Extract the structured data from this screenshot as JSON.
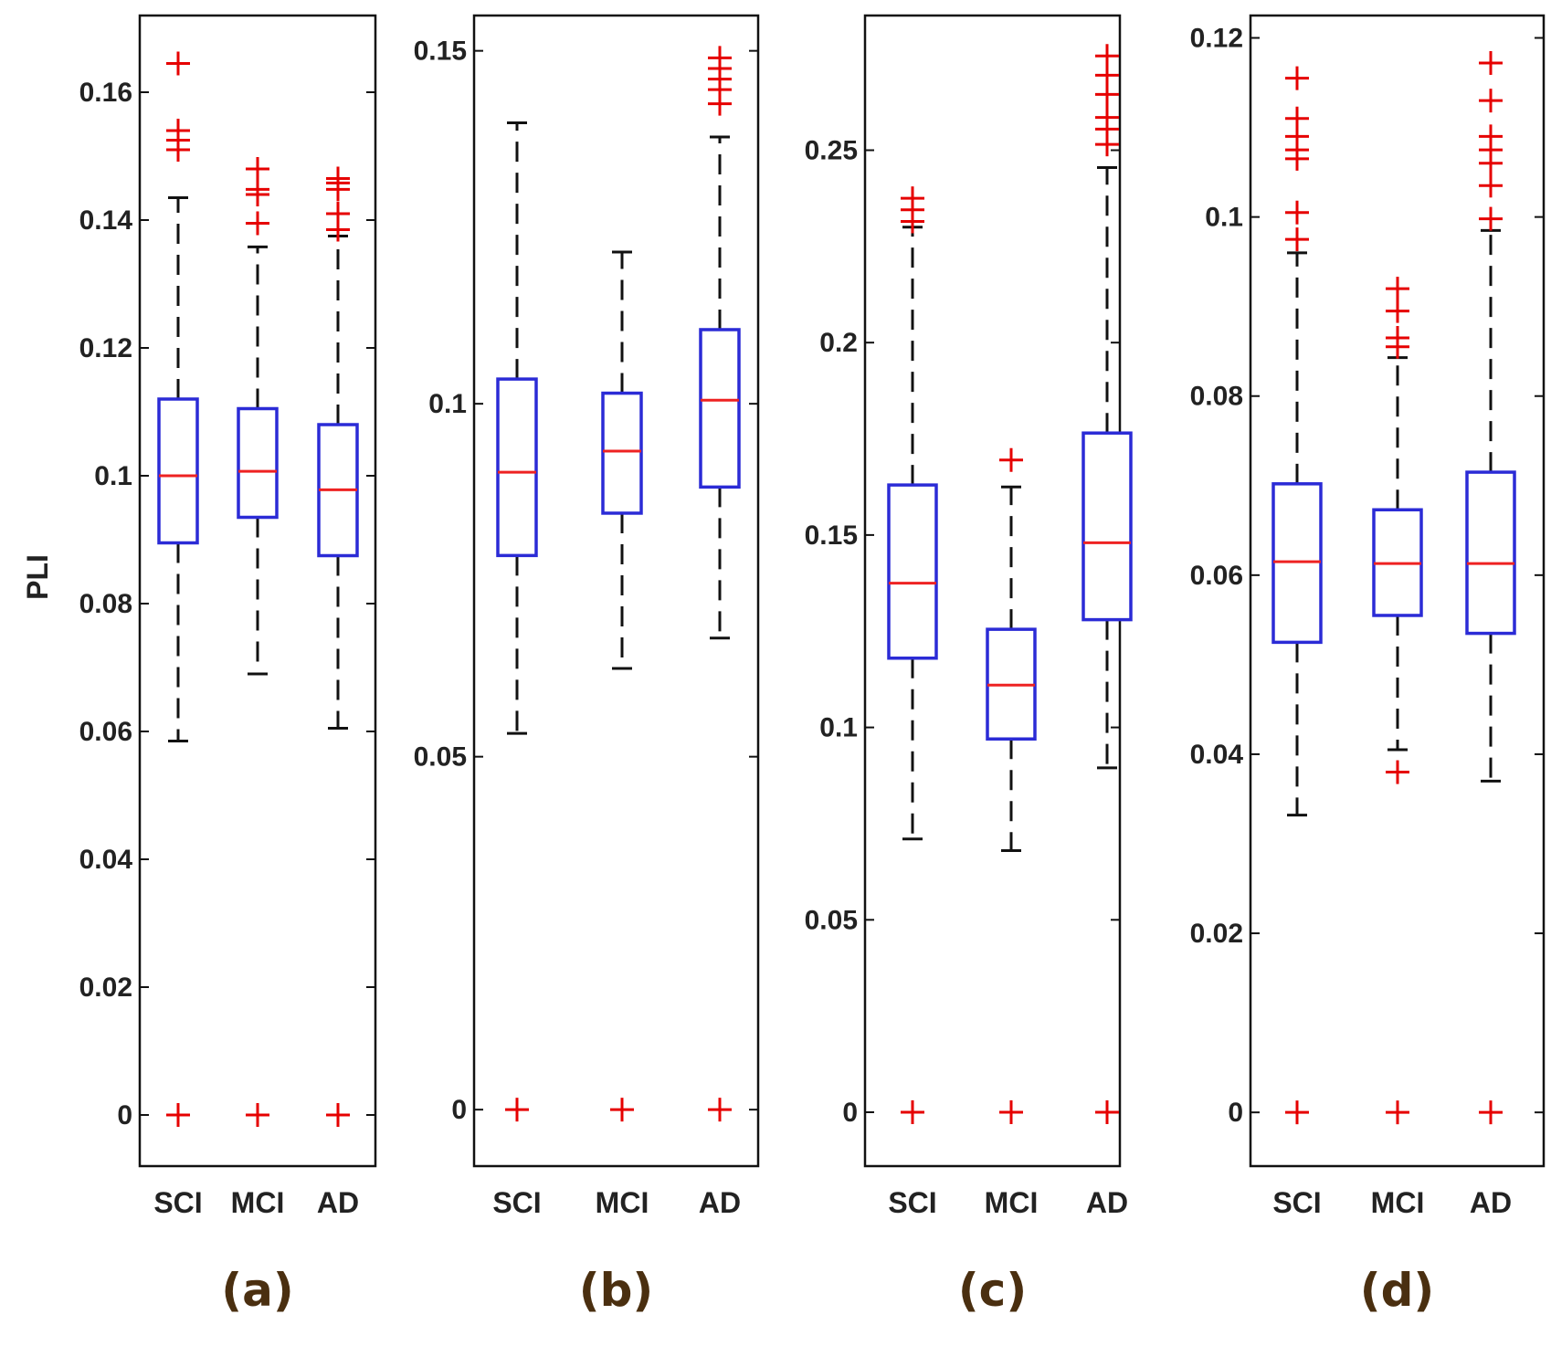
{
  "chart_data": [
    {
      "type": "box",
      "panel_label": "(a)",
      "ylabel": "PLI",
      "ylim": [
        -0.008,
        0.172
      ],
      "yticks": [
        0,
        0.02,
        0.04,
        0.06,
        0.08,
        0.1,
        0.12,
        0.14,
        0.16
      ],
      "ytick_labels": [
        "0",
        "0.02",
        "0.04",
        "0.06",
        "0.08",
        "0.1",
        "0.12",
        "0.14",
        "0.16"
      ],
      "categories": [
        "SCI",
        "MCI",
        "AD"
      ],
      "boxes": [
        {
          "name": "SCI",
          "whisker_low": 0.0585,
          "q1": 0.0895,
          "median": 0.1,
          "q3": 0.112,
          "whisker_high": 0.1435,
          "outliers": [
            0,
            0.151,
            0.1525,
            0.154,
            0.1645
          ]
        },
        {
          "name": "MCI",
          "whisker_low": 0.069,
          "q1": 0.0935,
          "median": 0.1007,
          "q3": 0.1105,
          "whisker_high": 0.1358,
          "outliers": [
            0,
            0.1395,
            0.144,
            0.1448,
            0.148
          ]
        },
        {
          "name": "AD",
          "whisker_low": 0.0605,
          "q1": 0.0875,
          "median": 0.0978,
          "q3": 0.108,
          "whisker_high": 0.1375,
          "outliers": [
            0,
            0.1385,
            0.141,
            0.1448,
            0.1458,
            0.1465
          ]
        }
      ]
    },
    {
      "type": "box",
      "panel_label": "(b)",
      "ylabel": "",
      "ylim": [
        -0.008,
        0.155
      ],
      "yticks": [
        0,
        0.05,
        0.1,
        0.15
      ],
      "ytick_labels": [
        "0",
        "0.05",
        "0.1",
        "0.15"
      ],
      "categories": [
        "SCI",
        "MCI",
        "AD"
      ],
      "boxes": [
        {
          "name": "SCI",
          "whisker_low": 0.0533,
          "q1": 0.0785,
          "median": 0.0903,
          "q3": 0.1035,
          "whisker_high": 0.1398,
          "outliers": [
            0
          ]
        },
        {
          "name": "MCI",
          "whisker_low": 0.0625,
          "q1": 0.0845,
          "median": 0.0933,
          "q3": 0.1015,
          "whisker_high": 0.1215,
          "outliers": [
            0
          ]
        },
        {
          "name": "AD",
          "whisker_low": 0.0668,
          "q1": 0.0882,
          "median": 0.1005,
          "q3": 0.1105,
          "whisker_high": 0.1378,
          "outliers": [
            0,
            0.1425,
            0.1445,
            0.146,
            0.1475,
            0.149
          ]
        }
      ]
    },
    {
      "type": "box",
      "panel_label": "(c)",
      "ylabel": "",
      "ylim": [
        -0.014,
        0.285
      ],
      "yticks": [
        0,
        0.05,
        0.1,
        0.15,
        0.2,
        0.25
      ],
      "ytick_labels": [
        "0",
        "0.05",
        "0.1",
        "0.15",
        "0.2",
        "0.25"
      ],
      "categories": [
        "SCI",
        "MCI",
        "AD"
      ],
      "boxes": [
        {
          "name": "SCI",
          "whisker_low": 0.071,
          "q1": 0.118,
          "median": 0.1375,
          "q3": 0.163,
          "whisker_high": 0.23,
          "outliers": [
            0,
            0.2315,
            0.2345,
            0.2375
          ]
        },
        {
          "name": "MCI",
          "whisker_low": 0.068,
          "q1": 0.097,
          "median": 0.111,
          "q3": 0.1255,
          "whisker_high": 0.1625,
          "outliers": [
            0,
            0.1695
          ]
        },
        {
          "name": "AD",
          "whisker_low": 0.0895,
          "q1": 0.128,
          "median": 0.148,
          "q3": 0.1765,
          "whisker_high": 0.2455,
          "outliers": [
            0,
            0.2515,
            0.2555,
            0.2585,
            0.2645,
            0.2695,
            0.2745
          ]
        }
      ]
    },
    {
      "type": "box",
      "panel_label": "(d)",
      "ylabel": "",
      "ylim": [
        -0.006,
        0.1225
      ],
      "yticks": [
        0,
        0.02,
        0.04,
        0.06,
        0.08,
        0.1,
        0.12
      ],
      "ytick_labels": [
        "0",
        "0.02",
        "0.04",
        "0.06",
        "0.08",
        "0.1",
        "0.12"
      ],
      "categories": [
        "SCI",
        "MCI",
        "AD"
      ],
      "boxes": [
        {
          "name": "SCI",
          "whisker_low": 0.0332,
          "q1": 0.0525,
          "median": 0.0615,
          "q3": 0.0702,
          "whisker_high": 0.096,
          "outliers": [
            0,
            0.0975,
            0.1005,
            0.1065,
            0.1075,
            0.109,
            0.111,
            0.1155
          ]
        },
        {
          "name": "MCI",
          "whisker_low": 0.0405,
          "q1": 0.0555,
          "median": 0.0613,
          "q3": 0.0673,
          "whisker_high": 0.0843,
          "outliers": [
            0,
            0.038,
            0.0855,
            0.0865,
            0.0895,
            0.092
          ]
        },
        {
          "name": "AD",
          "whisker_low": 0.037,
          "q1": 0.0535,
          "median": 0.0613,
          "q3": 0.0715,
          "whisker_high": 0.0985,
          "outliers": [
            0,
            0.0998,
            0.1035,
            0.106,
            0.1075,
            0.109,
            0.113,
            0.1172
          ]
        }
      ]
    }
  ],
  "colors": {
    "box": "#2b2bd6",
    "median": "#ee2222",
    "outlier": "#e60000",
    "whisker": "#111111",
    "axis": "#111111",
    "panel_label": "#4a2f10"
  }
}
